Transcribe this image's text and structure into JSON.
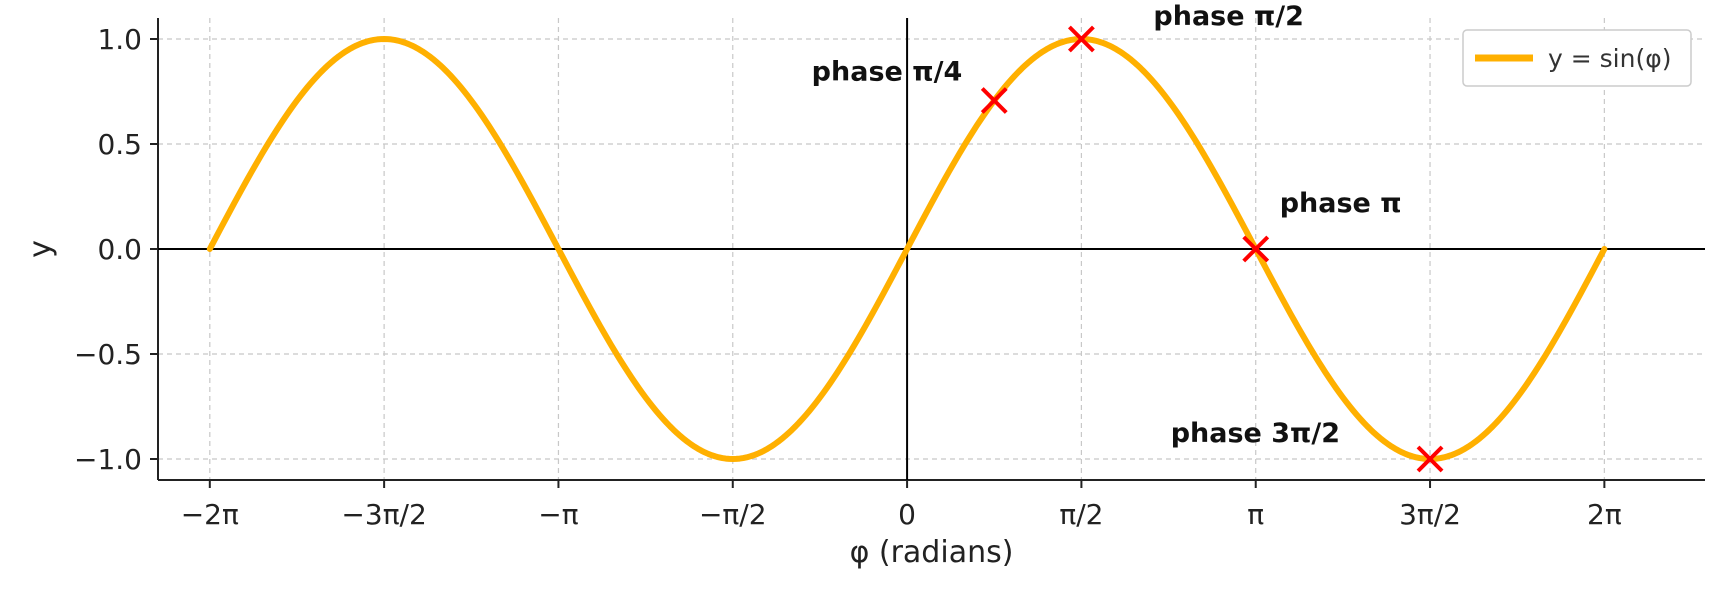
{
  "chart_data": {
    "type": "line",
    "xlabel": "φ (radians)",
    "ylabel": "y",
    "xlim": [
      -6.75,
      7.19
    ],
    "ylim": [
      -1.1,
      1.1
    ],
    "grid": true,
    "legend_position": "top-right",
    "x_ticks": [
      {
        "value": -6.2832,
        "label": "−2π"
      },
      {
        "value": -4.7124,
        "label": "−3π/2"
      },
      {
        "value": -3.1416,
        "label": "−π"
      },
      {
        "value": -1.5708,
        "label": "−π/2"
      },
      {
        "value": 0,
        "label": "0"
      },
      {
        "value": 1.5708,
        "label": "π/2"
      },
      {
        "value": 3.1416,
        "label": "π"
      },
      {
        "value": 4.7124,
        "label": "3π/2"
      },
      {
        "value": 6.2832,
        "label": "2π"
      }
    ],
    "y_ticks": [
      {
        "value": 1.0,
        "label": "1.0"
      },
      {
        "value": 0.5,
        "label": "0.5"
      },
      {
        "value": 0.0,
        "label": "0.0"
      },
      {
        "value": -0.5,
        "label": "−0.5"
      },
      {
        "value": -1.0,
        "label": "−1.0"
      }
    ],
    "series": [
      {
        "name": "y = sin(φ)",
        "function": "sin",
        "domain": [
          -6.2832,
          6.2832
        ],
        "color": "#FFB000"
      }
    ],
    "markers": [
      {
        "x": 0.7854,
        "y": 0.7071,
        "label": "phase π/4",
        "color": "#FF0000"
      },
      {
        "x": 1.5708,
        "y": 1.0,
        "label": "phase π/2",
        "color": "#FF0000"
      },
      {
        "x": 3.1416,
        "y": 0.0,
        "label": "phase π",
        "color": "#FF0000"
      },
      {
        "x": 4.7124,
        "y": -1.0,
        "label": "phase 3π/2",
        "color": "#FF0000"
      }
    ]
  }
}
